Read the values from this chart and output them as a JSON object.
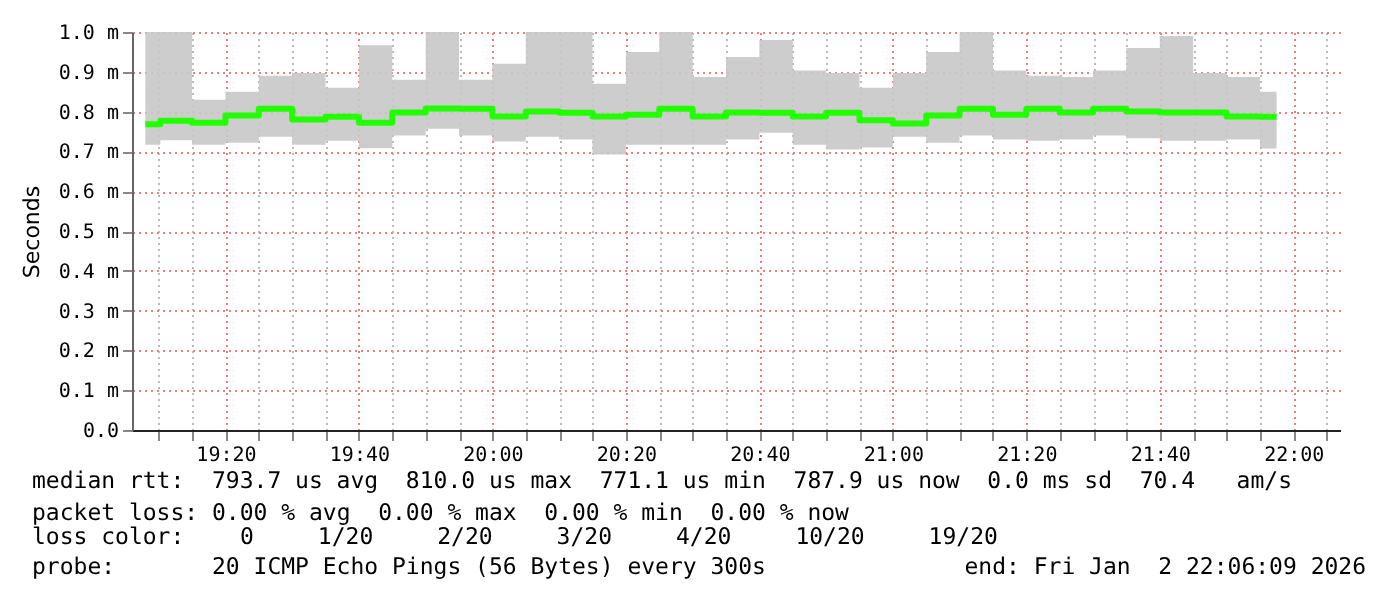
{
  "chart_data": {
    "type": "step",
    "ylabel": "Seconds",
    "x": [
      "2026-01-02T19:08",
      "2026-01-02T19:12:30",
      "2026-01-02T19:17:30",
      "2026-01-02T19:22:30",
      "2026-01-02T19:27:30",
      "2026-01-02T19:32:30",
      "2026-01-02T19:37:30",
      "2026-01-02T19:42:30",
      "2026-01-02T19:47:30",
      "2026-01-02T19:52:30",
      "2026-01-02T19:57:30",
      "2026-01-02T20:02:30",
      "2026-01-02T20:07:30",
      "2026-01-02T20:12:30",
      "2026-01-02T20:17:30",
      "2026-01-02T20:22:30",
      "2026-01-02T20:27:30",
      "2026-01-02T20:32:30",
      "2026-01-02T20:37:30",
      "2026-01-02T20:42:30",
      "2026-01-02T20:47:30",
      "2026-01-02T20:52:30",
      "2026-01-02T20:57:30",
      "2026-01-02T21:02:30",
      "2026-01-02T21:07:30",
      "2026-01-02T21:12:30",
      "2026-01-02T21:17:30",
      "2026-01-02T21:22:30",
      "2026-01-02T21:27:30",
      "2026-01-02T21:32:30",
      "2026-01-02T21:37:30",
      "2026-01-02T21:42:30",
      "2026-01-02T21:47:30",
      "2026-01-02T21:52:30",
      "2026-01-02T21:57:30"
    ],
    "series": [
      {
        "color": "#22ff00",
        "values": [
          0.768,
          0.777,
          0.772,
          0.79,
          0.807,
          0.78,
          0.787,
          0.772,
          0.798,
          0.808,
          0.807,
          0.788,
          0.8,
          0.797,
          0.788,
          0.792,
          0.807,
          0.788,
          0.798,
          0.797,
          0.788,
          0.797,
          0.778,
          0.77,
          0.79,
          0.807,
          0.792,
          0.807,
          0.798,
          0.807,
          0.8,
          0.798,
          0.798,
          0.788,
          0.787
        ],
        "lower": [
          0.717,
          0.728,
          0.717,
          0.722,
          0.737,
          0.717,
          0.727,
          0.708,
          0.74,
          0.757,
          0.74,
          0.725,
          0.737,
          0.73,
          0.692,
          0.717,
          0.717,
          0.717,
          0.73,
          0.747,
          0.717,
          0.705,
          0.71,
          0.737,
          0.722,
          0.74,
          0.73,
          0.727,
          0.73,
          0.74,
          0.733,
          0.727,
          0.727,
          0.73,
          0.707
        ],
        "upper": [
          1.0,
          1.0,
          0.83,
          0.85,
          0.89,
          0.897,
          0.86,
          0.967,
          0.88,
          1.0,
          0.88,
          0.92,
          1.0,
          1.0,
          0.87,
          0.95,
          1.0,
          0.887,
          0.937,
          0.98,
          0.903,
          0.897,
          0.86,
          0.897,
          0.95,
          1.0,
          0.903,
          0.89,
          0.887,
          0.903,
          0.96,
          0.99,
          0.897,
          0.887,
          0.85
        ]
      }
    ],
    "xlim": [
      "2026-01-02T19:06",
      "2026-01-02T22:07"
    ],
    "xticks": [
      {
        "value": "2026-01-02T19:10",
        "label": null
      },
      {
        "value": "2026-01-02T19:15",
        "label": null
      },
      {
        "value": "2026-01-02T19:20",
        "label": "19:20"
      },
      {
        "value": "2026-01-02T19:25",
        "label": null
      },
      {
        "value": "2026-01-02T19:30",
        "label": null
      },
      {
        "value": "2026-01-02T19:35",
        "label": null
      },
      {
        "value": "2026-01-02T19:40",
        "label": "19:40"
      },
      {
        "value": "2026-01-02T19:45",
        "label": null
      },
      {
        "value": "2026-01-02T19:50",
        "label": null
      },
      {
        "value": "2026-01-02T19:55",
        "label": null
      },
      {
        "value": "2026-01-02T20:00",
        "label": "20:00"
      },
      {
        "value": "2026-01-02T20:05",
        "label": null
      },
      {
        "value": "2026-01-02T20:10",
        "label": null
      },
      {
        "value": "2026-01-02T20:15",
        "label": null
      },
      {
        "value": "2026-01-02T20:20",
        "label": "20:20"
      },
      {
        "value": "2026-01-02T20:25",
        "label": null
      },
      {
        "value": "2026-01-02T20:30",
        "label": null
      },
      {
        "value": "2026-01-02T20:35",
        "label": null
      },
      {
        "value": "2026-01-02T20:40",
        "label": "20:40"
      },
      {
        "value": "2026-01-02T20:45",
        "label": null
      },
      {
        "value": "2026-01-02T20:50",
        "label": null
      },
      {
        "value": "2026-01-02T20:55",
        "label": null
      },
      {
        "value": "2026-01-02T21:00",
        "label": "21:00"
      },
      {
        "value": "2026-01-02T21:05",
        "label": null
      },
      {
        "value": "2026-01-02T21:10",
        "label": null
      },
      {
        "value": "2026-01-02T21:15",
        "label": null
      },
      {
        "value": "2026-01-02T21:20",
        "label": "21:20"
      },
      {
        "value": "2026-01-02T21:25",
        "label": null
      },
      {
        "value": "2026-01-02T21:30",
        "label": null
      },
      {
        "value": "2026-01-02T21:35",
        "label": null
      },
      {
        "value": "2026-01-02T21:40",
        "label": "21:40"
      },
      {
        "value": "2026-01-02T21:45",
        "label": null
      },
      {
        "value": "2026-01-02T21:50",
        "label": null
      },
      {
        "value": "2026-01-02T21:55",
        "label": null
      },
      {
        "value": "2026-01-02T22:00",
        "label": "22:00"
      },
      {
        "value": "2026-01-02T22:05",
        "label": null
      }
    ],
    "ylim": [
      0,
      1.0
    ],
    "yticks": [
      {
        "value": 0,
        "label": "0.0"
      },
      {
        "value": 0.1,
        "label": "0.1 m"
      },
      {
        "value": 0.2,
        "label": "0.2 m"
      },
      {
        "value": 0.3,
        "label": "0.3 m"
      },
      {
        "value": 0.4,
        "label": "0.4 m"
      },
      {
        "value": 0.5,
        "label": "0.5 m"
      },
      {
        "value": 0.6,
        "label": "0.6 m"
      },
      {
        "value": 0.7,
        "label": "0.7 m"
      },
      {
        "value": 0.8,
        "label": "0.8 m"
      },
      {
        "value": 0.9,
        "label": "0.9 m"
      },
      {
        "value": 1.0,
        "label": "1.0 m"
      }
    ],
    "grid": true,
    "annotations": [
      "median rtt:  793.7 us avg  810.0 us max  771.1 us min  787.9 us now  0.0 ms sd  70.4   am/s",
      "packet loss: 0.00 % avg  0.00 % max  0.00 % min  0.00 % now",
      "loss color:",
      "0",
      "1/20",
      "2/20",
      "3/20",
      "4/20",
      "10/20",
      "19/20",
      "probe:       20 ICMP Echo Pings (56 Bytes) every 300s",
      "end: Fri Jan  2 22:06:09 2026"
    ]
  }
}
